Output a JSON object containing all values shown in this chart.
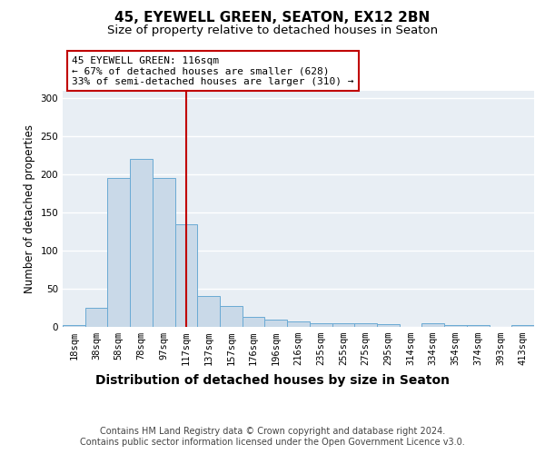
{
  "title1": "45, EYEWELL GREEN, SEATON, EX12 2BN",
  "title2": "Size of property relative to detached houses in Seaton",
  "xlabel": "Distribution of detached houses by size in Seaton",
  "ylabel": "Number of detached properties",
  "categories": [
    "18sqm",
    "38sqm",
    "58sqm",
    "78sqm",
    "97sqm",
    "117sqm",
    "137sqm",
    "157sqm",
    "176sqm",
    "196sqm",
    "216sqm",
    "235sqm",
    "255sqm",
    "275sqm",
    "295sqm",
    "314sqm",
    "334sqm",
    "354sqm",
    "374sqm",
    "393sqm",
    "413sqm"
  ],
  "values": [
    2,
    25,
    195,
    220,
    195,
    135,
    40,
    27,
    13,
    10,
    7,
    5,
    5,
    5,
    3,
    0,
    5,
    2,
    2,
    0,
    2
  ],
  "bar_color": "#c9d9e8",
  "bar_edge_color": "#6aaad4",
  "vline_x_index": 5,
  "vline_color": "#c00000",
  "annotation_text": "45 EYEWELL GREEN: 116sqm\n← 67% of detached houses are smaller (628)\n33% of semi-detached houses are larger (310) →",
  "annotation_box_color": "white",
  "annotation_box_edge_color": "#c00000",
  "ylim": [
    0,
    310
  ],
  "yticks": [
    0,
    50,
    100,
    150,
    200,
    250,
    300
  ],
  "bg_color": "#e8eef4",
  "footer_text": "Contains HM Land Registry data © Crown copyright and database right 2024.\nContains public sector information licensed under the Open Government Licence v3.0.",
  "title1_fontsize": 11,
  "title2_fontsize": 9.5,
  "xlabel_fontsize": 10,
  "ylabel_fontsize": 8.5,
  "tick_fontsize": 7.5,
  "annotation_fontsize": 8,
  "footer_fontsize": 7
}
